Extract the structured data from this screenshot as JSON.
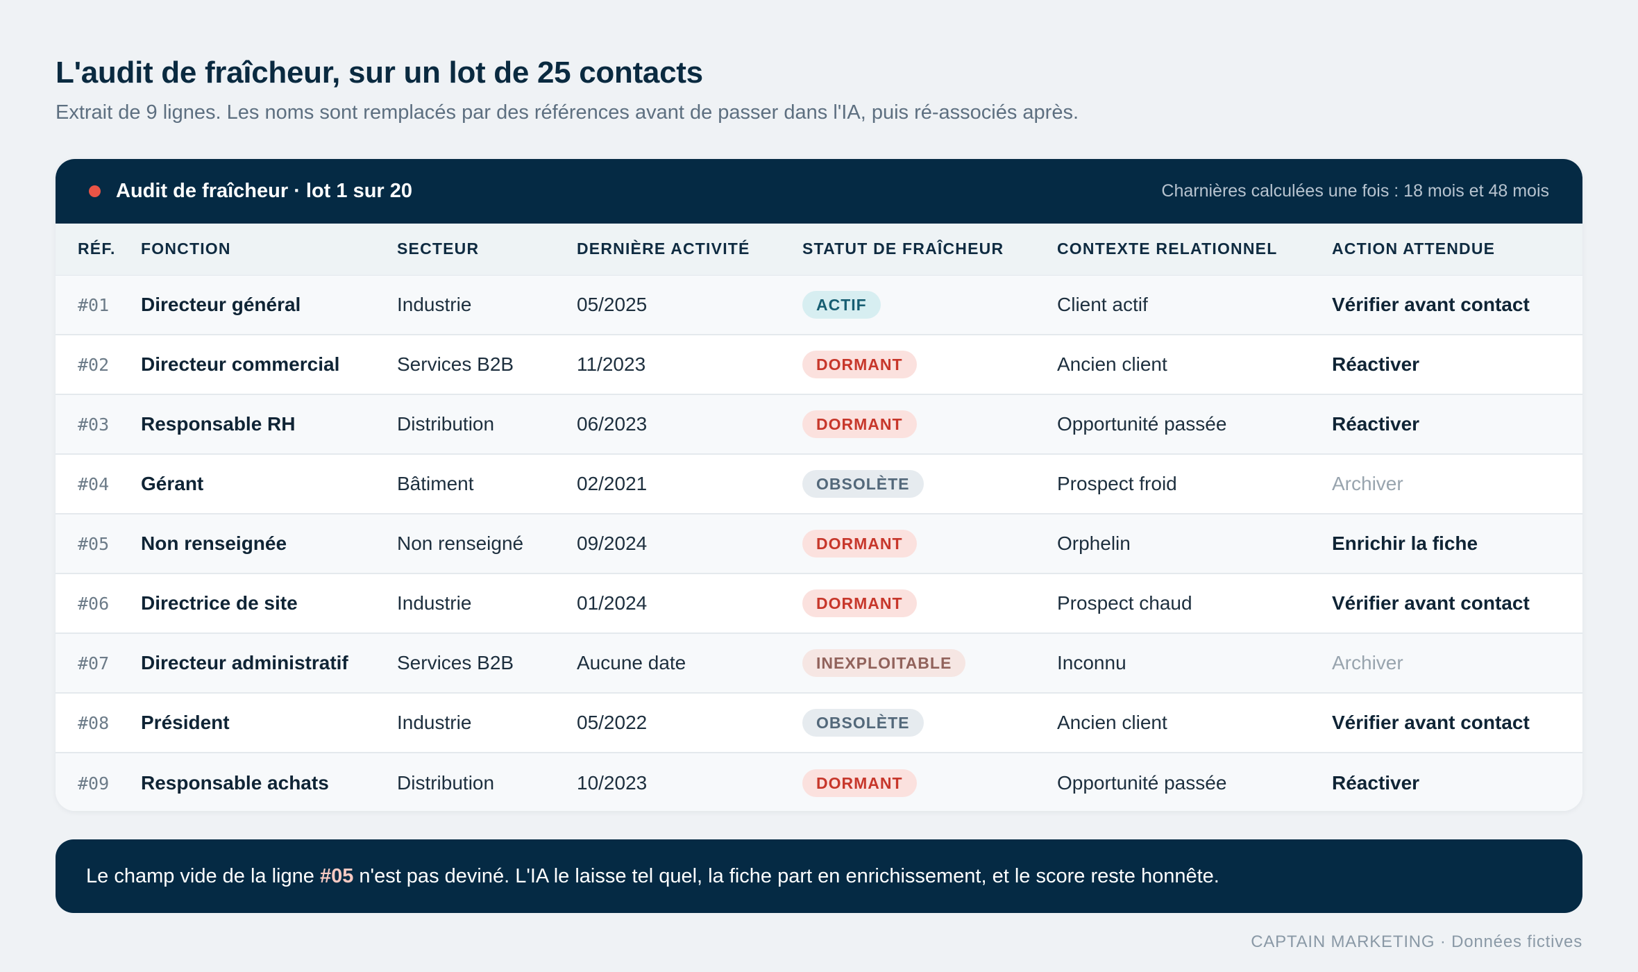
{
  "header": {
    "title": "L'audit de fraîcheur, sur un lot de 25 contacts",
    "subtitle": "Extrait de 9 lignes. Les noms sont remplacés par des références avant de passer dans l'IA, puis ré-associés après."
  },
  "card": {
    "title": "Audit de fraîcheur · lot 1 sur 20",
    "note": "Charnières calculées une fois : 18 mois et 48 mois",
    "dot_color": "#ea5446"
  },
  "table": {
    "columns": [
      "RÉF.",
      "FONCTION",
      "SECTEUR",
      "DERNIÈRE ACTIVITÉ",
      "STATUT DE FRAÎCHEUR",
      "CONTEXTE RELATIONNEL",
      "ACTION ATTENDUE"
    ],
    "rows": [
      {
        "ref": "#01",
        "fonction": "Directeur général",
        "secteur": "Industrie",
        "activite": "05/2025",
        "statut": "ACTIF",
        "contexte": "Client actif",
        "action": "Vérifier avant contact"
      },
      {
        "ref": "#02",
        "fonction": "Directeur commercial",
        "secteur": "Services B2B",
        "activite": "11/2023",
        "statut": "DORMANT",
        "contexte": "Ancien client",
        "action": "Réactiver"
      },
      {
        "ref": "#03",
        "fonction": "Responsable RH",
        "secteur": "Distribution",
        "activite": "06/2023",
        "statut": "DORMANT",
        "contexte": "Opportunité passée",
        "action": "Réactiver"
      },
      {
        "ref": "#04",
        "fonction": "Gérant",
        "secteur": "Bâtiment",
        "activite": "02/2021",
        "statut": "OBSOLÈTE",
        "contexte": "Prospect froid",
        "action": "Archiver"
      },
      {
        "ref": "#05",
        "fonction": "Non renseignée",
        "secteur": "Non renseigné",
        "activite": "09/2024",
        "statut": "DORMANT",
        "contexte": "Orphelin",
        "action": "Enrichir la fiche"
      },
      {
        "ref": "#06",
        "fonction": "Directrice de site",
        "secteur": "Industrie",
        "activite": "01/2024",
        "statut": "DORMANT",
        "contexte": "Prospect chaud",
        "action": "Vérifier avant contact"
      },
      {
        "ref": "#07",
        "fonction": "Directeur administratif",
        "secteur": "Services B2B",
        "activite": "Aucune date",
        "statut": "INEXPLOITABLE",
        "contexte": "Inconnu",
        "action": "Archiver"
      },
      {
        "ref": "#08",
        "fonction": "Président",
        "secteur": "Industrie",
        "activite": "05/2022",
        "statut": "OBSOLÈTE",
        "contexte": "Ancien client",
        "action": "Vérifier avant contact"
      },
      {
        "ref": "#09",
        "fonction": "Responsable achats",
        "secteur": "Distribution",
        "activite": "10/2023",
        "statut": "DORMANT",
        "contexte": "Opportunité passée",
        "action": "Réactiver"
      }
    ]
  },
  "banner": {
    "text_before": "Le champ vide de la ligne ",
    "highlight": "#05",
    "text_after": " n'est pas deviné. L'IA le laisse tel quel, la fiche part en enrichissement, et le score reste honnête."
  },
  "footer": {
    "text": "CAPTAIN MARKETING · Données fictives"
  },
  "colors": {
    "navy": "#052a44",
    "actif": "#175e72",
    "dormant": "#c7372b",
    "obsolete": "#53687a",
    "inexploitable": "#91625b"
  }
}
